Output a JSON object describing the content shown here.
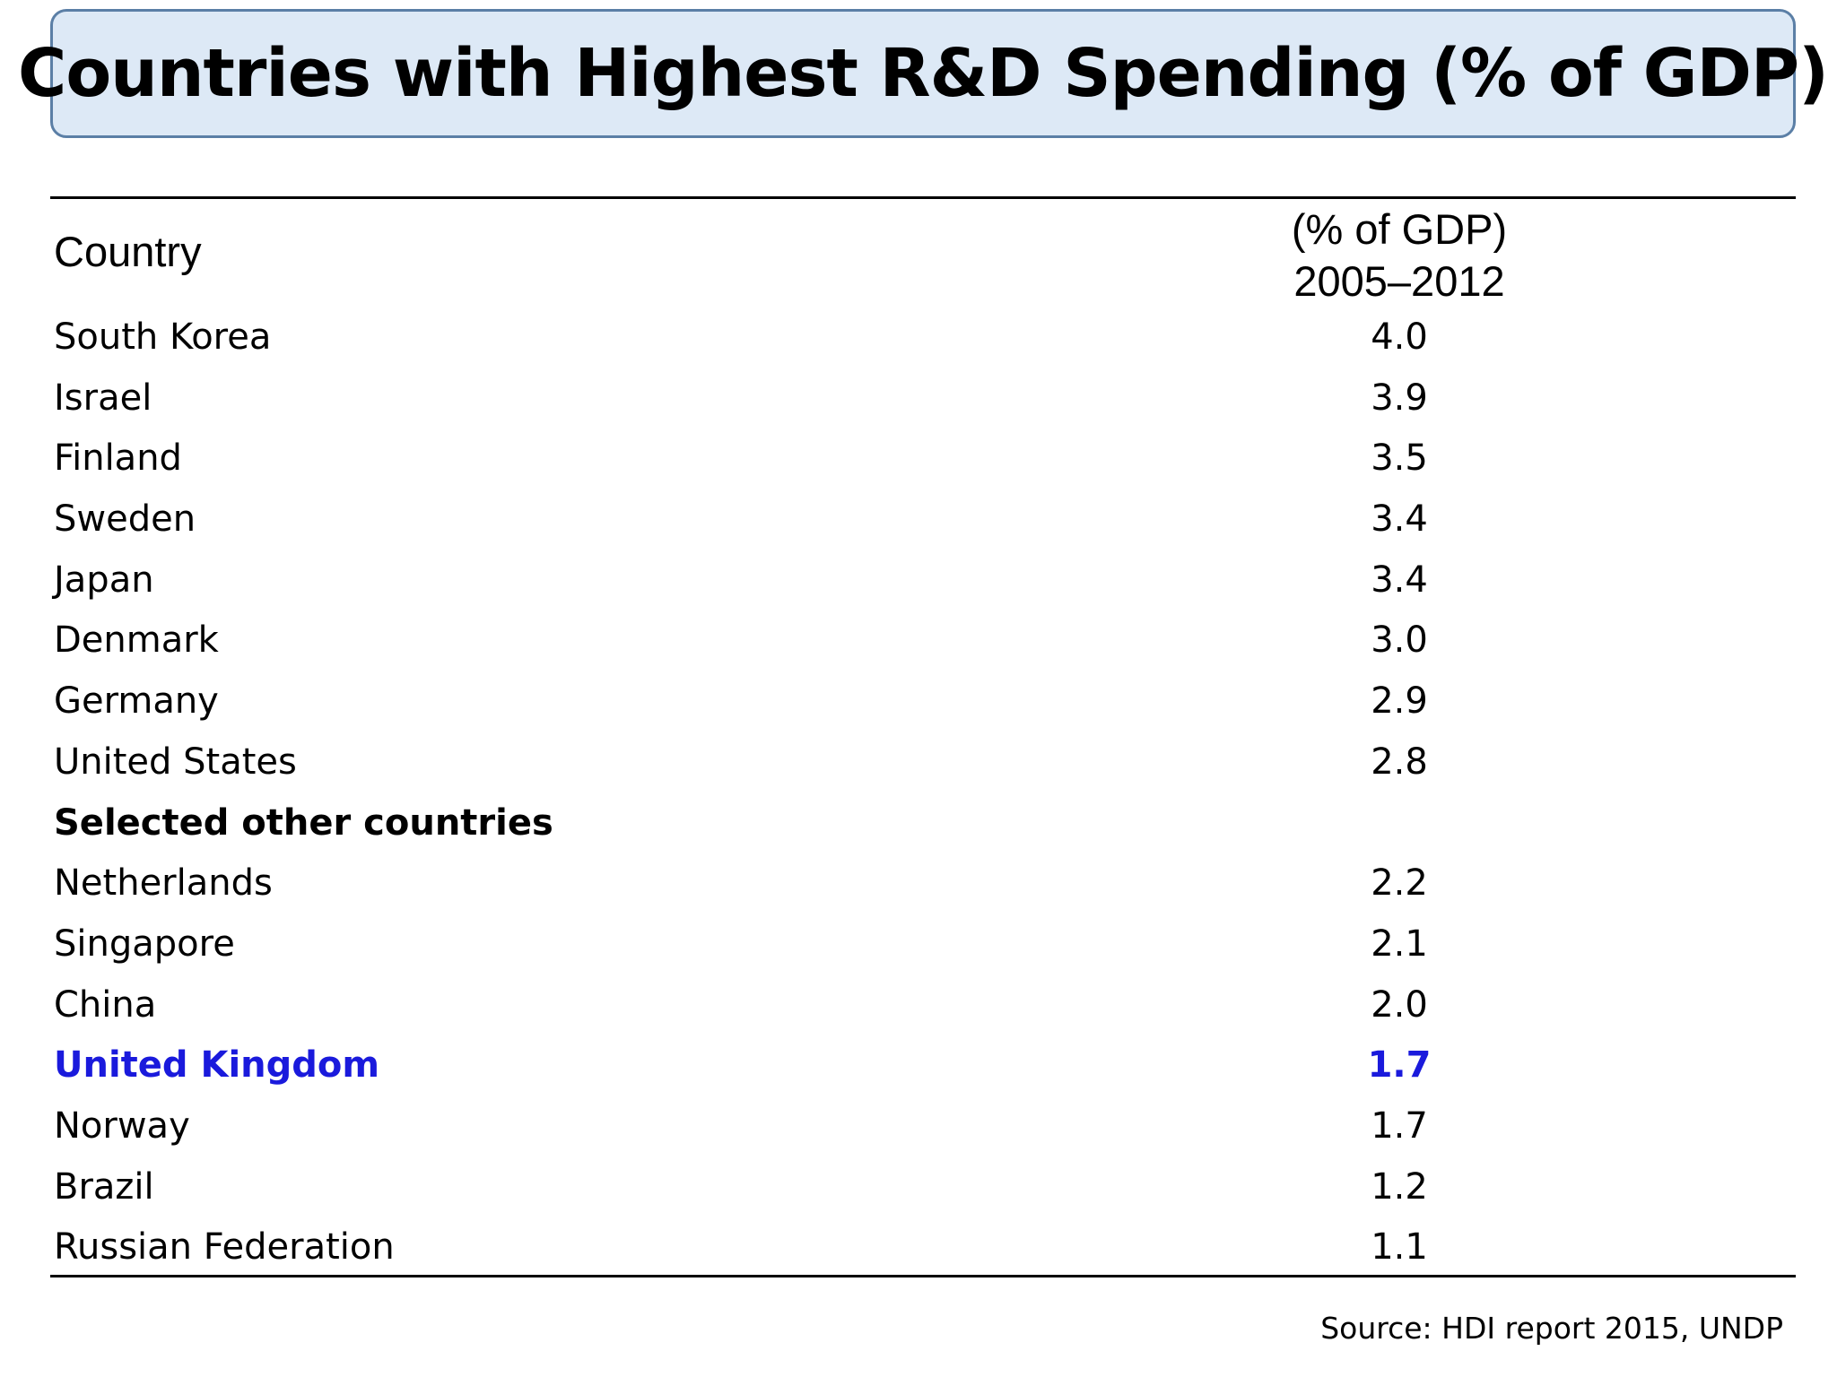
{
  "title": "Countries with Highest R&D Spending (% of GDP)",
  "table": {
    "header_country": "Country",
    "header_value_line1": "(% of GDP)",
    "header_value_line2": "2005–2012",
    "rows": [
      {
        "country": "South Korea",
        "value": "4.0"
      },
      {
        "country": "Israel",
        "value": "3.9"
      },
      {
        "country": "Finland",
        "value": "3.5"
      },
      {
        "country": "Sweden",
        "value": "3.4"
      },
      {
        "country": "Japan",
        "value": "3.4"
      },
      {
        "country": "Denmark",
        "value": "3.0"
      },
      {
        "country": "Germany",
        "value": "2.9"
      },
      {
        "country": "United States",
        "value": "2.8"
      },
      {
        "country": "Selected other countries",
        "value": ""
      },
      {
        "country": "Netherlands",
        "value": "2.2"
      },
      {
        "country": "Singapore",
        "value": "2.1"
      },
      {
        "country": "China",
        "value": "2.0"
      },
      {
        "country": "United Kingdom",
        "value": "1.7"
      },
      {
        "country": "Norway",
        "value": "1.7"
      },
      {
        "country": "Brazil",
        "value": "1.2"
      },
      {
        "country": "Russian Federation",
        "value": "1.1"
      }
    ]
  },
  "source": "Source: HDI report 2015, UNDP",
  "colors": {
    "title_background": "#dde9f6",
    "title_border": "#5b7fa6",
    "highlight": "#1a1adc"
  }
}
